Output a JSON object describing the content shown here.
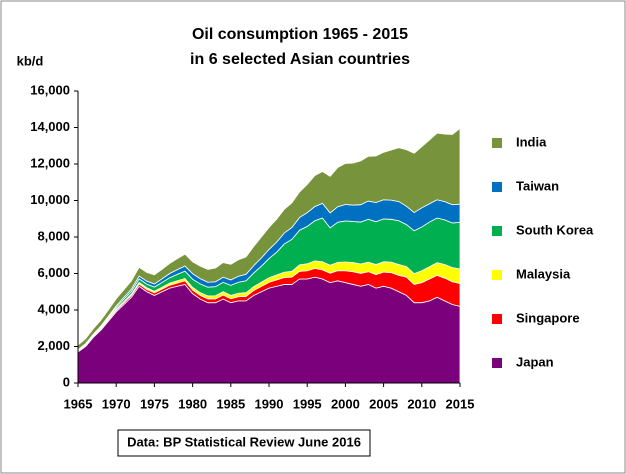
{
  "chart_data": {
    "type": "stacked-area",
    "title": "Oil consumption 1965 - 2015",
    "subtitle": "in 6 selected  Asian countries",
    "y_label": "kb/d",
    "annotation": "Data: BP Statistical Review June 2016",
    "x": [
      1965,
      1966,
      1967,
      1968,
      1969,
      1970,
      1971,
      1972,
      1973,
      1974,
      1975,
      1976,
      1977,
      1978,
      1979,
      1980,
      1981,
      1982,
      1983,
      1984,
      1985,
      1986,
      1987,
      1988,
      1989,
      1990,
      1991,
      1992,
      1993,
      1994,
      1995,
      1996,
      1997,
      1998,
      1999,
      2000,
      2001,
      2002,
      2003,
      2004,
      2005,
      2006,
      2007,
      2008,
      2009,
      2010,
      2011,
      2012,
      2013,
      2014,
      2015
    ],
    "series": [
      {
        "name": "Japan",
        "color": "#7b007b",
        "values": [
          1700,
          2000,
          2500,
          2900,
          3400,
          3900,
          4300,
          4700,
          5300,
          5000,
          4800,
          5000,
          5200,
          5300,
          5400,
          4900,
          4600,
          4400,
          4400,
          4600,
          4400,
          4500,
          4500,
          4800,
          5000,
          5200,
          5300,
          5400,
          5400,
          5700,
          5700,
          5800,
          5700,
          5500,
          5600,
          5500,
          5400,
          5300,
          5400,
          5200,
          5300,
          5200,
          5000,
          4800,
          4400,
          4400,
          4500,
          4700,
          4500,
          4300,
          4200
        ]
      },
      {
        "name": "Singapore",
        "color": "#ff0000",
        "values": [
          50,
          55,
          60,
          70,
          80,
          90,
          100,
          110,
          130,
          130,
          140,
          150,
          160,
          180,
          200,
          200,
          200,
          210,
          210,
          220,
          220,
          230,
          250,
          270,
          290,
          320,
          350,
          380,
          400,
          420,
          450,
          480,
          500,
          520,
          560,
          650,
          700,
          710,
          700,
          740,
          780,
          850,
          900,
          1000,
          1000,
          1100,
          1200,
          1200,
          1250,
          1250,
          1250
        ]
      },
      {
        "name": "Malaysia",
        "color": "#ffff00",
        "values": [
          30,
          35,
          40,
          45,
          50,
          55,
          60,
          70,
          80,
          90,
          90,
          100,
          110,
          120,
          130,
          140,
          150,
          160,
          170,
          180,
          180,
          190,
          200,
          210,
          230,
          250,
          270,
          290,
          320,
          350,
          380,
          410,
          440,
          430,
          450,
          480,
          500,
          510,
          520,
          550,
          560,
          570,
          590,
          580,
          590,
          650,
          670,
          690,
          740,
          770,
          800
        ]
      },
      {
        "name": "South Korea",
        "color": "#00b050",
        "values": [
          20,
          30,
          40,
          60,
          80,
          100,
          130,
          150,
          200,
          200,
          230,
          260,
          300,
          350,
          400,
          450,
          480,
          480,
          500,
          520,
          550,
          600,
          650,
          750,
          880,
          1050,
          1250,
          1550,
          1750,
          1900,
          2050,
          2200,
          2400,
          2050,
          2200,
          2250,
          2250,
          2300,
          2350,
          2350,
          2350,
          2350,
          2400,
          2300,
          2350,
          2400,
          2450,
          2450,
          2450,
          2450,
          2550
        ]
      },
      {
        "name": "Taiwan",
        "color": "#0070c0",
        "values": [
          30,
          35,
          40,
          50,
          60,
          80,
          100,
          120,
          150,
          160,
          170,
          200,
          230,
          260,
          280,
          300,
          290,
          270,
          270,
          280,
          300,
          330,
          360,
          400,
          450,
          500,
          550,
          600,
          650,
          700,
          750,
          780,
          800,
          820,
          850,
          900,
          900,
          950,
          1000,
          1050,
          1050,
          1050,
          1050,
          1000,
          1000,
          1050,
          1000,
          1000,
          1000,
          1000,
          1000
        ]
      },
      {
        "name": "India",
        "color": "#77933c",
        "values": [
          250,
          270,
          290,
          320,
          350,
          390,
          420,
          450,
          480,
          480,
          500,
          520,
          550,
          600,
          650,
          650,
          680,
          700,
          750,
          800,
          850,
          900,
          950,
          1050,
          1150,
          1200,
          1250,
          1300,
          1350,
          1400,
          1550,
          1700,
          1750,
          2000,
          2150,
          2250,
          2300,
          2400,
          2450,
          2550,
          2600,
          2750,
          2950,
          3100,
          3250,
          3350,
          3500,
          3650,
          3700,
          3850,
          4150
        ]
      }
    ],
    "xlim": [
      1965,
      2015
    ],
    "xticks": [
      1965,
      1970,
      1975,
      1980,
      1985,
      1990,
      1995,
      2000,
      2005,
      2010,
      2015
    ],
    "ylim": [
      0,
      16000
    ],
    "yticks": [
      0,
      {
        "value": 2000,
        "label": "2,000"
      },
      {
        "value": 4000,
        "label": "4,000"
      },
      {
        "value": 6000,
        "label": "6,000"
      },
      {
        "value": 8000,
        "label": "8,000"
      },
      {
        "value": 10000,
        "label": "10,000"
      },
      {
        "value": 12000,
        "label": "12,000"
      },
      {
        "value": 14000,
        "label": "14,000"
      },
      {
        "value": 16000,
        "label": "16,000"
      }
    ],
    "grid": false,
    "legend": "right"
  }
}
